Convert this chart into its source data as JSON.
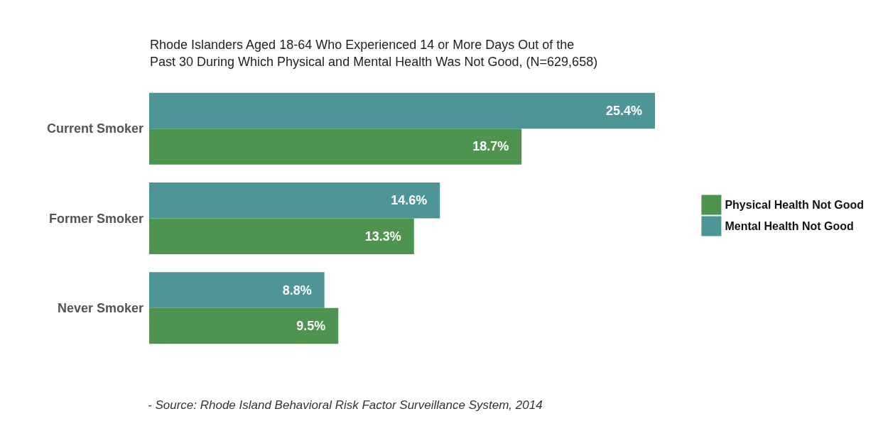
{
  "chart_data": {
    "type": "bar",
    "orientation": "horizontal",
    "title": "Rhode Islanders Aged 18-64 Who Experienced 14 or More Days Out of the\nPast 30 During Which Physical and Mental Health Was Not Good, (N=629,658)",
    "categories": [
      "Current Smoker",
      "Former Smoker",
      "Never Smoker"
    ],
    "series": [
      {
        "name": "Physical Health Not Good",
        "color": "#4e944f",
        "values": [
          18.7,
          13.3,
          9.5
        ],
        "value_labels": [
          "18.7%",
          "13.3%",
          "9.5%"
        ]
      },
      {
        "name": "Mental Health Not Good",
        "color": "#4e9595",
        "values": [
          25.4,
          14.6,
          8.8
        ],
        "value_labels": [
          "25.4%",
          "14.6%",
          "8.8%"
        ]
      }
    ],
    "legend": "right",
    "annotations": [
      "- Source: Rhode Island Behavioral Risk Factor Surveillance System, 2014"
    ]
  }
}
